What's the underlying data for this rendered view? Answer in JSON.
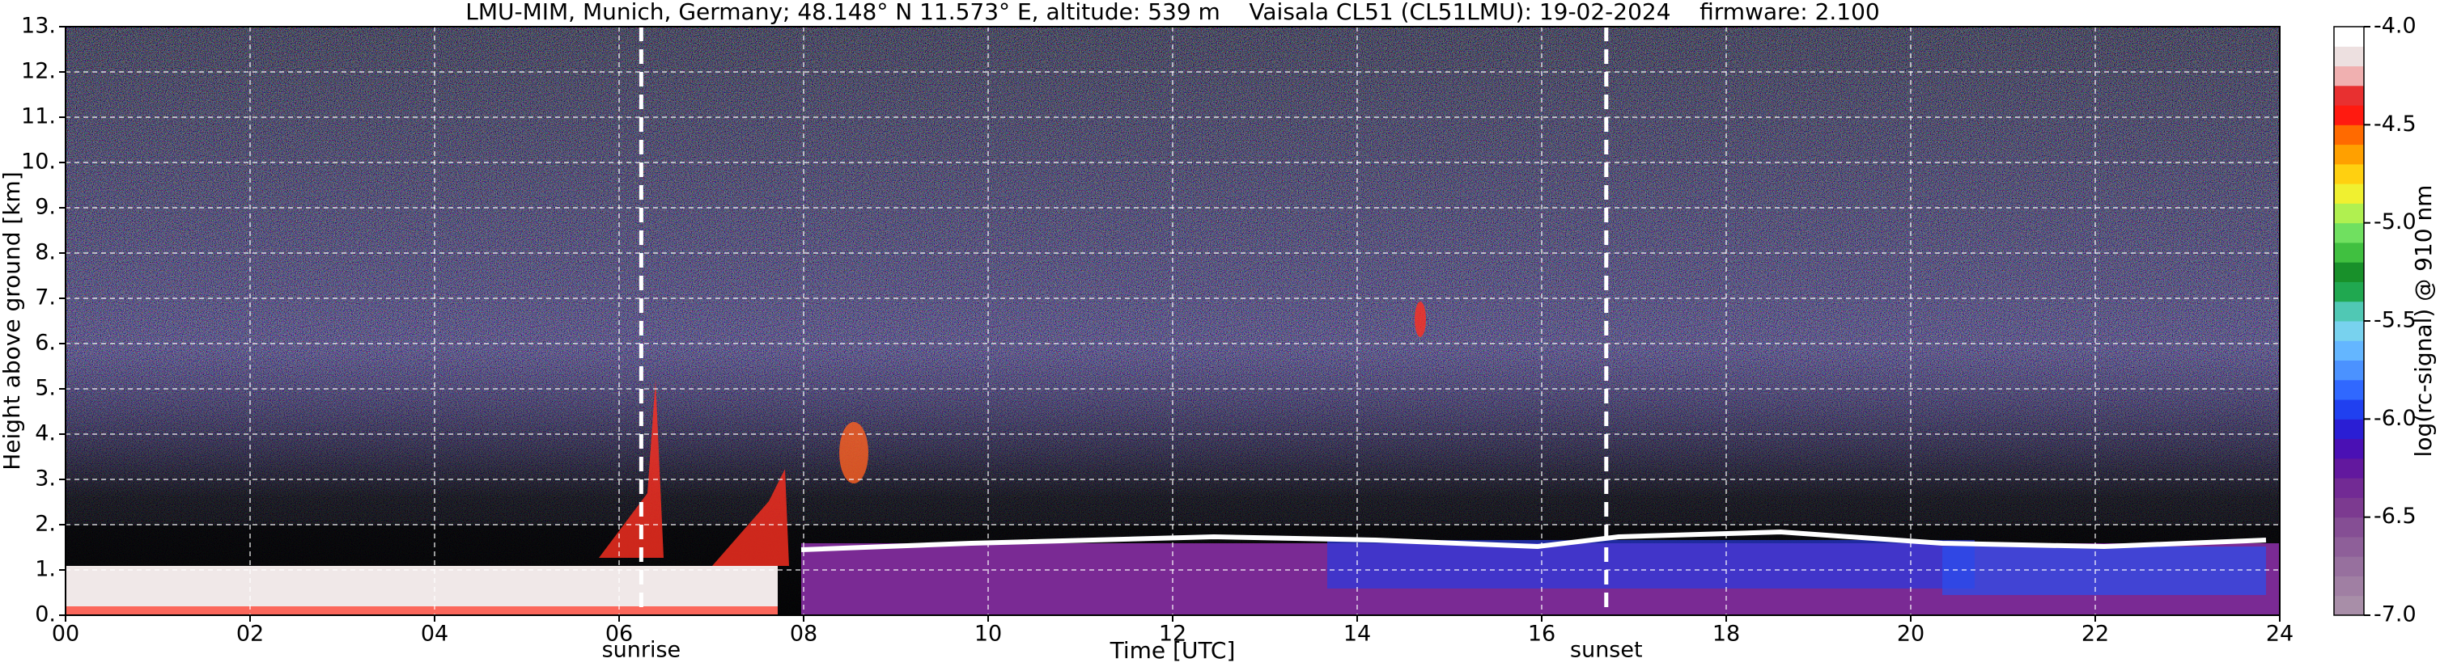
{
  "chart_data": {
    "type": "time-height",
    "title": "LMU-MIM, Munich, Germany; 48.148° N 11.573° E, altitude: 539 m    Vaisala CL51 (CL51LMU): 19-02-2024    firmware: 2.100",
    "xlabel": "Time [UTC]",
    "ylabel": "Height above ground [km]",
    "xlim": [
      0,
      24
    ],
    "xticks": [
      {
        "value": 0,
        "label": "00"
      },
      {
        "value": 2,
        "label": "02"
      },
      {
        "value": 4,
        "label": "04"
      },
      {
        "value": 6,
        "label": "06"
      },
      {
        "value": 8,
        "label": "08"
      },
      {
        "value": 10,
        "label": "10"
      },
      12,
      14,
      16,
      18,
      20,
      22,
      24
    ],
    "ylim": [
      0,
      13
    ],
    "yticks": [
      {
        "value": 0,
        "label": "0."
      },
      {
        "value": 1,
        "label": "1."
      },
      {
        "value": 2,
        "label": "2."
      },
      {
        "value": 3,
        "label": "3."
      },
      {
        "value": 4,
        "label": "4."
      },
      {
        "value": 5,
        "label": "5."
      },
      {
        "value": 6,
        "label": "6."
      },
      {
        "value": 7,
        "label": "7."
      },
      {
        "value": 8,
        "label": "8."
      },
      {
        "value": 9,
        "label": "9."
      },
      {
        "value": 10,
        "label": "10."
      },
      {
        "value": 11,
        "label": "11."
      },
      {
        "value": 12,
        "label": "12."
      },
      {
        "value": 13,
        "label": "13."
      }
    ],
    "grid": true,
    "annotations": [
      {
        "text": "sunrise",
        "x": 6.24
      },
      {
        "text": "sunset",
        "x": 16.7
      }
    ],
    "colorbar": {
      "label": "log(rc-signal) @ 910 nm",
      "lim": [
        -7.0,
        -4.0
      ],
      "ticks": [
        {
          "value": -7.0,
          "label": "-7.0"
        },
        {
          "value": -6.5,
          "label": "-6.5"
        },
        {
          "value": -6.0,
          "label": "-6.0"
        },
        {
          "value": -5.5,
          "label": "-5.5"
        },
        {
          "value": -5.0,
          "label": "-5.0"
        },
        {
          "value": -4.5,
          "label": "-4.5"
        },
        {
          "value": -4.0,
          "label": "-4.0"
        }
      ],
      "colors": [
        "#a88ea8",
        "#a07fa3",
        "#97709e",
        "#8e5f99",
        "#854e94",
        "#7c3a90",
        "#722a94",
        "#62189e",
        "#4a10b4",
        "#2a1ed4",
        "#2040f0",
        "#3068ff",
        "#4b92ff",
        "#64b6ff",
        "#78d2ee",
        "#50c8b4",
        "#20a850",
        "#18902a",
        "#40c040",
        "#70e060",
        "#b0f050",
        "#f0f030",
        "#ffd010",
        "#ffa000",
        "#ff6a00",
        "#ff1a10",
        "#e83030",
        "#f0b0b0",
        "#ede0e0",
        "#ffffff"
      ]
    }
  }
}
